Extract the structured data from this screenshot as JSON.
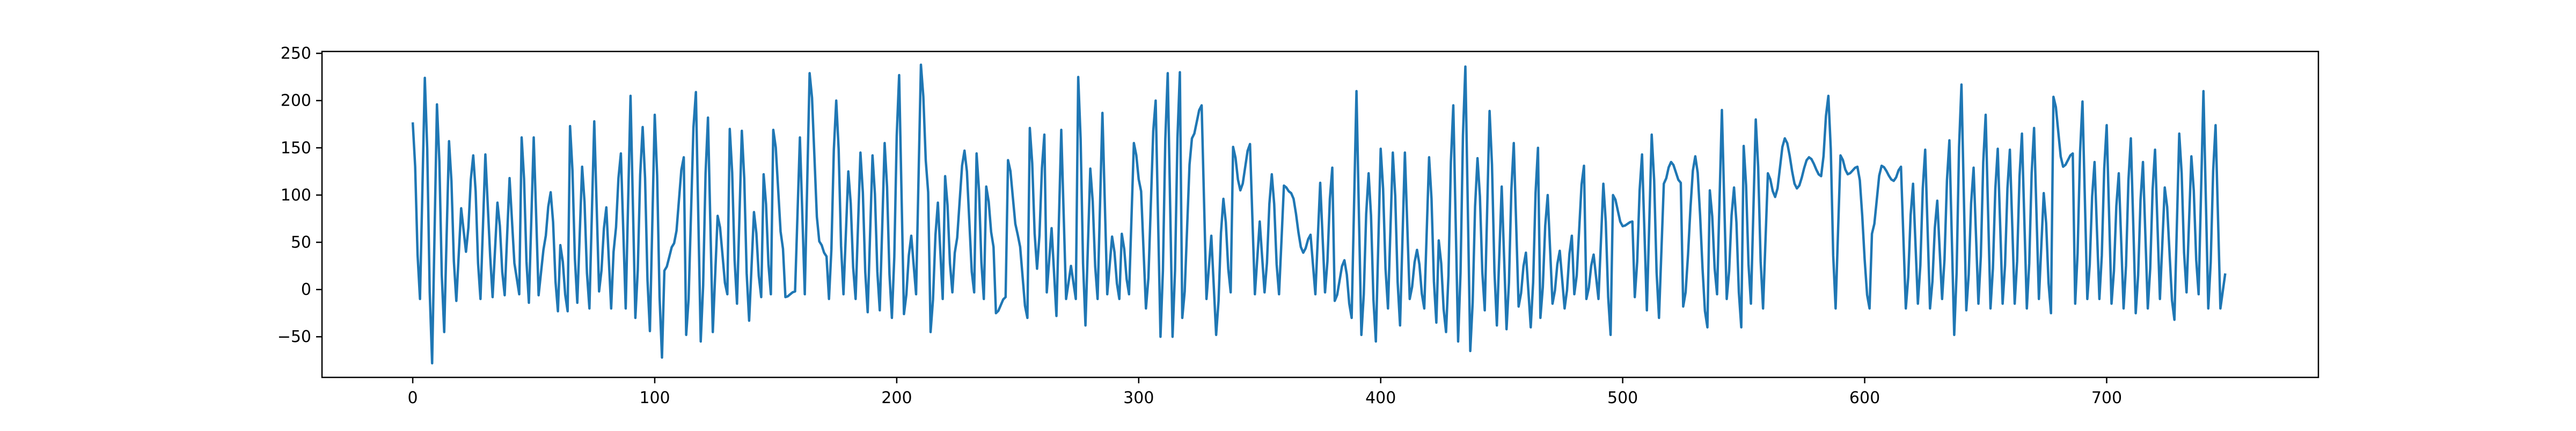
{
  "chart_data": {
    "type": "line",
    "title": "",
    "xlabel": "",
    "ylabel": "",
    "xlim": [
      -37.5,
      787.5
    ],
    "ylim": [
      -93,
      252
    ],
    "xticks": [
      0,
      100,
      200,
      300,
      400,
      500,
      600,
      700
    ],
    "yticks": [
      -50,
      0,
      50,
      100,
      150,
      200,
      250
    ],
    "grid": false,
    "legend": "none",
    "series_color": "#1f77b4",
    "n_points": 750,
    "peaks": [
      [
        0,
        177
      ],
      [
        5,
        224
      ],
      [
        10,
        196
      ],
      [
        15,
        157
      ],
      [
        20,
        86
      ],
      [
        22,
        40
      ],
      [
        25,
        142
      ],
      [
        30,
        143
      ],
      [
        32,
        35
      ],
      [
        35,
        92
      ],
      [
        40,
        118
      ],
      [
        42,
        28
      ],
      [
        45,
        161
      ],
      [
        50,
        161
      ],
      [
        54,
        42
      ],
      [
        57,
        103
      ],
      [
        61,
        47
      ],
      [
        65,
        173
      ],
      [
        70,
        130
      ],
      [
        75,
        178
      ],
      [
        80,
        87
      ],
      [
        83,
        40
      ],
      [
        86,
        144
      ],
      [
        90,
        205
      ],
      [
        95,
        172
      ],
      [
        100,
        185
      ],
      [
        104,
        20
      ],
      [
        108,
        49
      ],
      [
        112,
        140
      ],
      [
        117,
        209
      ],
      [
        122,
        182
      ],
      [
        126,
        78
      ],
      [
        131,
        170
      ],
      [
        136,
        168
      ],
      [
        141,
        82
      ],
      [
        145,
        122
      ],
      [
        149,
        169
      ],
      [
        153,
        43
      ],
      [
        160,
        161
      ],
      [
        164,
        229
      ],
      [
        168,
        51
      ],
      [
        171,
        35
      ],
      [
        175,
        200
      ],
      [
        180,
        125
      ],
      [
        185,
        145
      ],
      [
        190,
        142
      ],
      [
        195,
        155
      ],
      [
        201,
        227
      ],
      [
        206,
        57
      ],
      [
        210,
        238
      ],
      [
        213,
        103
      ],
      [
        217,
        92
      ],
      [
        220,
        120
      ],
      [
        224,
        39
      ],
      [
        228,
        147
      ],
      [
        233,
        144
      ],
      [
        237,
        109
      ],
      [
        240,
        45
      ],
      [
        246,
        137
      ],
      [
        250,
        58
      ],
      [
        255,
        171
      ],
      [
        258,
        22
      ],
      [
        261,
        164
      ],
      [
        264,
        65
      ],
      [
        268,
        169
      ],
      [
        272,
        25
      ],
      [
        275,
        225
      ],
      [
        280,
        128
      ],
      [
        285,
        187
      ],
      [
        289,
        56
      ],
      [
        293,
        59
      ],
      [
        298,
        155
      ],
      [
        301,
        104
      ],
      [
        307,
        200
      ],
      [
        312,
        229
      ],
      [
        317,
        230
      ],
      [
        322,
        160
      ],
      [
        326,
        195
      ],
      [
        330,
        57
      ],
      [
        335,
        96
      ],
      [
        339,
        151
      ],
      [
        342,
        105
      ],
      [
        346,
        154
      ],
      [
        350,
        72
      ],
      [
        355,
        122
      ],
      [
        360,
        110
      ],
      [
        363,
        102
      ],
      [
        368,
        39
      ],
      [
        371,
        58
      ],
      [
        375,
        113
      ],
      [
        380,
        129
      ],
      [
        385,
        31
      ],
      [
        390,
        210
      ],
      [
        395,
        123
      ],
      [
        400,
        149
      ],
      [
        405,
        145
      ],
      [
        410,
        145
      ],
      [
        415,
        42
      ],
      [
        420,
        140
      ],
      [
        424,
        52
      ],
      [
        430,
        195
      ],
      [
        435,
        236
      ],
      [
        440,
        139
      ],
      [
        445,
        189
      ],
      [
        450,
        109
      ],
      [
        455,
        155
      ],
      [
        460,
        39
      ],
      [
        465,
        150
      ],
      [
        469,
        100
      ],
      [
        474,
        41
      ],
      [
        479,
        57
      ],
      [
        484,
        131
      ],
      [
        488,
        37
      ],
      [
        492,
        112
      ],
      [
        496,
        100
      ],
      [
        500,
        67
      ],
      [
        504,
        72
      ],
      [
        508,
        143
      ],
      [
        512,
        164
      ],
      [
        517,
        112
      ],
      [
        520,
        135
      ],
      [
        524,
        113
      ],
      [
        530,
        141
      ],
      [
        536,
        105
      ],
      [
        541,
        190
      ],
      [
        546,
        108
      ],
      [
        550,
        152
      ],
      [
        555,
        180
      ],
      [
        560,
        123
      ],
      [
        563,
        98
      ],
      [
        567,
        160
      ],
      [
        572,
        107
      ],
      [
        577,
        140
      ],
      [
        582,
        120
      ],
      [
        585,
        205
      ],
      [
        590,
        142
      ],
      [
        593,
        122
      ],
      [
        597,
        130
      ],
      [
        603,
        59
      ],
      [
        607,
        131
      ],
      [
        612,
        115
      ],
      [
        615,
        130
      ],
      [
        620,
        112
      ],
      [
        625,
        148
      ],
      [
        630,
        94
      ],
      [
        635,
        158
      ],
      [
        640,
        217
      ],
      [
        645,
        129
      ],
      [
        650,
        185
      ],
      [
        655,
        149
      ],
      [
        660,
        148
      ],
      [
        665,
        165
      ],
      [
        670,
        171
      ],
      [
        674,
        102
      ],
      [
        678,
        204
      ],
      [
        682,
        130
      ],
      [
        686,
        144
      ],
      [
        690,
        199
      ],
      [
        695,
        135
      ],
      [
        700,
        174
      ],
      [
        705,
        123
      ],
      [
        710,
        160
      ],
      [
        715,
        135
      ],
      [
        720,
        148
      ],
      [
        724,
        108
      ],
      [
        730,
        165
      ],
      [
        735,
        141
      ],
      [
        740,
        210
      ],
      [
        745,
        174
      ]
    ],
    "troughs": [
      [
        3,
        -10
      ],
      [
        8,
        -78
      ],
      [
        13,
        -45
      ],
      [
        18,
        -12
      ],
      [
        22,
        -10
      ],
      [
        28,
        -10
      ],
      [
        33,
        -8
      ],
      [
        38,
        -6
      ],
      [
        44,
        -5
      ],
      [
        48,
        -14
      ],
      [
        52,
        -6
      ],
      [
        60,
        -23
      ],
      [
        64,
        -23
      ],
      [
        68,
        -14
      ],
      [
        73,
        -20
      ],
      [
        77,
        -2
      ],
      [
        82,
        -20
      ],
      [
        88,
        -20
      ],
      [
        92,
        -30
      ],
      [
        98,
        -44
      ],
      [
        103,
        -72
      ],
      [
        108,
        -5
      ],
      [
        113,
        -48
      ],
      [
        119,
        -55
      ],
      [
        124,
        -45
      ],
      [
        130,
        -5
      ],
      [
        134,
        -15
      ],
      [
        139,
        -33
      ],
      [
        144,
        -8
      ],
      [
        148,
        -5
      ],
      [
        154,
        -8
      ],
      [
        158,
        -2
      ],
      [
        162,
        -5
      ],
      [
        168,
        -32
      ],
      [
        172,
        -10
      ],
      [
        178,
        -5
      ],
      [
        183,
        -10
      ],
      [
        188,
        -24
      ],
      [
        193,
        -22
      ],
      [
        198,
        -30
      ],
      [
        203,
        -26
      ],
      [
        208,
        -5
      ],
      [
        214,
        -45
      ],
      [
        219,
        -10
      ],
      [
        223,
        -3
      ],
      [
        228,
        -8
      ],
      [
        232,
        -3
      ],
      [
        236,
        -10
      ],
      [
        241,
        -25
      ],
      [
        245,
        -8
      ],
      [
        250,
        -25
      ],
      [
        254,
        -30
      ],
      [
        258,
        -8
      ],
      [
        262,
        -3
      ],
      [
        266,
        -28
      ],
      [
        270,
        -10
      ],
      [
        274,
        -10
      ],
      [
        278,
        -38
      ],
      [
        283,
        -10
      ],
      [
        287,
        -5
      ],
      [
        292,
        -10
      ],
      [
        296,
        -5
      ],
      [
        303,
        -20
      ],
      [
        309,
        -50
      ],
      [
        314,
        -50
      ],
      [
        318,
        -30
      ],
      [
        322,
        -70
      ],
      [
        328,
        -10
      ],
      [
        332,
        -48
      ],
      [
        338,
        -3
      ],
      [
        342,
        -3
      ],
      [
        348,
        -5
      ],
      [
        352,
        -3
      ],
      [
        358,
        -5
      ],
      [
        363,
        -8
      ],
      [
        368,
        -10
      ],
      [
        373,
        -5
      ],
      [
        377,
        -3
      ],
      [
        381,
        -12
      ],
      [
        388,
        -30
      ],
      [
        392,
        -48
      ],
      [
        398,
        -55
      ],
      [
        403,
        -20
      ],
      [
        408,
        -38
      ],
      [
        412,
        -10
      ],
      [
        418,
        -20
      ],
      [
        423,
        -35
      ],
      [
        427,
        -45
      ],
      [
        432,
        -55
      ],
      [
        437,
        -65
      ],
      [
        443,
        -22
      ],
      [
        448,
        -38
      ],
      [
        452,
        -42
      ],
      [
        457,
        -18
      ],
      [
        462,
        -40
      ],
      [
        466,
        -30
      ],
      [
        471,
        -15
      ],
      [
        476,
        -20
      ],
      [
        480,
        -5
      ],
      [
        485,
        -10
      ],
      [
        490,
        -10
      ],
      [
        495,
        -48
      ],
      [
        500,
        -20
      ],
      [
        505,
        -8
      ],
      [
        510,
        -22
      ],
      [
        515,
        -30
      ],
      [
        520,
        -10
      ],
      [
        525,
        -18
      ],
      [
        530,
        -30
      ],
      [
        535,
        -40
      ],
      [
        539,
        -5
      ],
      [
        543,
        -10
      ],
      [
        549,
        -40
      ],
      [
        553,
        -15
      ],
      [
        558,
        -20
      ],
      [
        563,
        -8
      ],
      [
        567,
        -25
      ],
      [
        572,
        -28
      ],
      [
        577,
        -10
      ],
      [
        582,
        -18
      ],
      [
        588,
        -20
      ],
      [
        593,
        -10
      ],
      [
        597,
        -22
      ],
      [
        602,
        -20
      ],
      [
        607,
        -8
      ],
      [
        612,
        -10
      ],
      [
        617,
        -20
      ],
      [
        622,
        -15
      ],
      [
        627,
        -20
      ],
      [
        632,
        -10
      ],
      [
        637,
        -48
      ],
      [
        642,
        -22
      ],
      [
        647,
        -15
      ],
      [
        652,
        -20
      ],
      [
        657,
        -15
      ],
      [
        662,
        -15
      ],
      [
        667,
        -20
      ],
      [
        672,
        -10
      ],
      [
        677,
        -25
      ],
      [
        682,
        -20
      ],
      [
        687,
        -15
      ],
      [
        692,
        -10
      ],
      [
        697,
        -10
      ],
      [
        702,
        -15
      ],
      [
        707,
        -20
      ],
      [
        712,
        -25
      ],
      [
        717,
        -20
      ],
      [
        722,
        -10
      ],
      [
        728,
        -32
      ],
      [
        733,
        -3
      ],
      [
        738,
        -5
      ],
      [
        742,
        -20
      ],
      [
        747,
        -20
      ]
    ],
    "last_point": [
      749,
      17
    ]
  }
}
